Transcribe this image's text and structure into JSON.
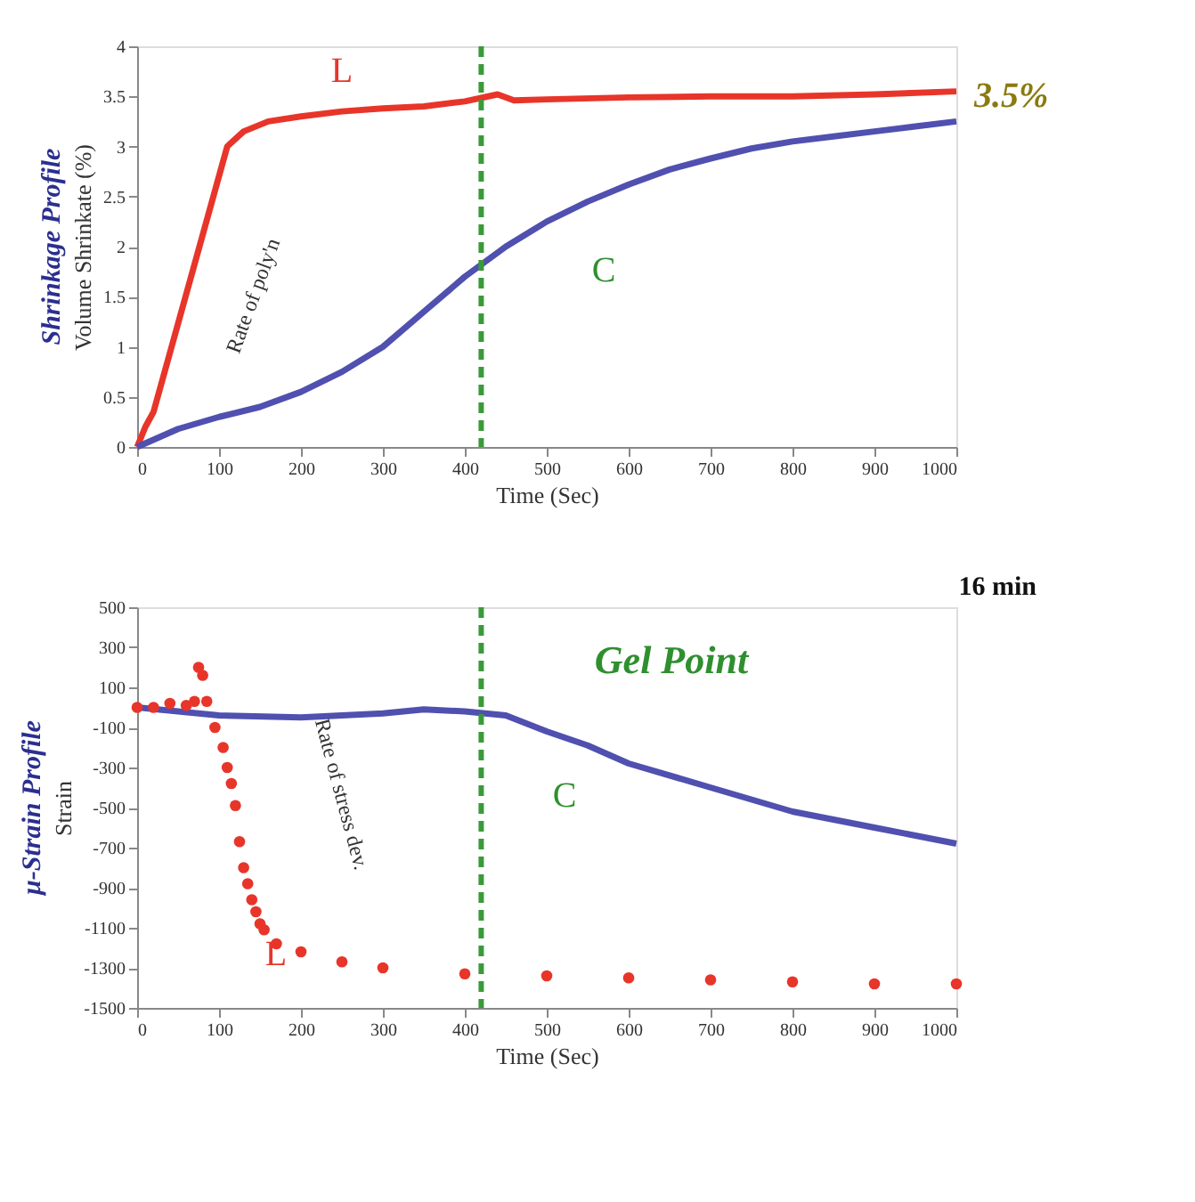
{
  "chart_data": [
    {
      "type": "line",
      "title": "Shrinkage Profile",
      "xlabel": "Time (Sec)",
      "ylabel": "Volume Shrinkate (%)",
      "xlim": [
        0,
        1000
      ],
      "xticks": [
        0,
        100,
        200,
        300,
        400,
        500,
        600,
        700,
        800,
        900,
        1000
      ],
      "ylim": [
        0,
        4
      ],
      "yticks": [
        0,
        0.5,
        1,
        1.5,
        2,
        2.5,
        3,
        3.5,
        4
      ],
      "grid": false,
      "series": [
        {
          "color": "#e8352a",
          "x": [
            0,
            10,
            20,
            110,
            130,
            160,
            200,
            250,
            300,
            350,
            400,
            440,
            460,
            500,
            600,
            700,
            800,
            900,
            1000
          ],
          "values": [
            0,
            0.2,
            0.35,
            3.0,
            3.15,
            3.25,
            3.3,
            3.35,
            3.38,
            3.4,
            3.45,
            3.52,
            3.46,
            3.47,
            3.49,
            3.5,
            3.5,
            3.52,
            3.55
          ]
        },
        {
          "color": "#5050b0",
          "x": [
            0,
            50,
            100,
            150,
            200,
            250,
            300,
            350,
            400,
            450,
            500,
            550,
            600,
            650,
            700,
            750,
            800,
            850,
            900,
            950,
            1000
          ],
          "values": [
            0,
            0.18,
            0.3,
            0.4,
            0.55,
            0.75,
            1.0,
            1.35,
            1.7,
            2.0,
            2.25,
            2.45,
            2.62,
            2.77,
            2.88,
            2.98,
            3.05,
            3.1,
            3.15,
            3.2,
            3.25
          ]
        }
      ],
      "ref_lines": [
        {
          "axis": "x",
          "value": 420,
          "color": "#3a9a3a",
          "line_style": "dashed"
        }
      ],
      "annotations": [
        "L",
        "C",
        "Rate of poly'n",
        {
          "text": "3.5%",
          "x": 1000,
          "y": 3.5
        }
      ]
    },
    {
      "type": "line",
      "title": "μ-Strain Profile",
      "xlabel": "Time (Sec)",
      "ylabel": "Strain",
      "xlim": [
        0,
        1000
      ],
      "xticks": [
        0,
        100,
        200,
        300,
        400,
        500,
        600,
        700,
        800,
        900,
        1000
      ],
      "ylim": [
        -1500,
        500
      ],
      "yticks": [
        -1500,
        -1300,
        -1100,
        -900,
        -700,
        -500,
        -300,
        -100,
        100,
        300,
        500
      ],
      "grid": false,
      "series": [
        {
          "color": "#5050b0",
          "x": [
            0,
            50,
            100,
            200,
            300,
            350,
            400,
            450,
            500,
            550,
            600,
            700,
            800,
            900,
            1000
          ],
          "values": [
            0,
            -20,
            -40,
            -50,
            -30,
            -10,
            -20,
            -40,
            -120,
            -190,
            -280,
            -400,
            -520,
            -600,
            -680
          ]
        },
        {
          "type": "scatter",
          "color": "#e8352a",
          "marker": "circle",
          "x": [
            0,
            20,
            40,
            60,
            70,
            75,
            80,
            85,
            95,
            105,
            110,
            115,
            120,
            125,
            130,
            135,
            140,
            145,
            150,
            155,
            170,
            200,
            250,
            300,
            400,
            500,
            600,
            700,
            800,
            900,
            1000
          ],
          "values": [
            0,
            0,
            20,
            10,
            30,
            200,
            160,
            30,
            -100,
            -200,
            -300,
            -380,
            -490,
            -670,
            -800,
            -880,
            -960,
            -1020,
            -1080,
            -1110,
            -1180,
            -1220,
            -1270,
            -1300,
            -1330,
            -1340,
            -1350,
            -1360,
            -1370,
            -1380,
            -1380
          ]
        }
      ],
      "ref_lines": [
        {
          "axis": "x",
          "value": 420,
          "color": "#3a9a3a",
          "line_style": "dashed"
        }
      ],
      "annotations": [
        "Gel Point",
        "C",
        "L",
        "Rate of stress dev.",
        "16 min"
      ]
    }
  ]
}
